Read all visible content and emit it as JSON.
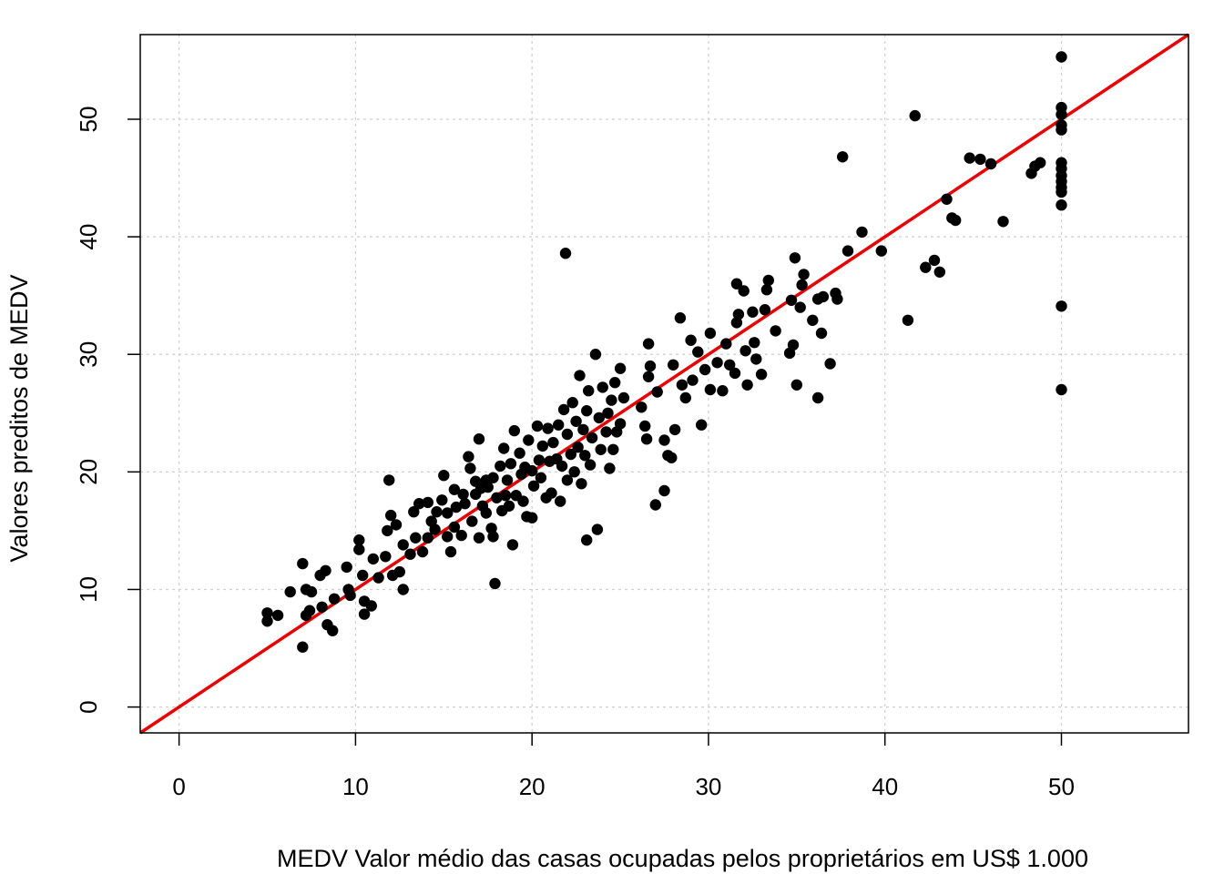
{
  "chart_data": {
    "type": "scatter",
    "title": "",
    "xlabel": "MEDV Valor médio das casas ocupadas pelos proprietários em US$ 1.000",
    "ylabel": "Valores preditos de MEDV",
    "xlim": [
      -2.2,
      57.2
    ],
    "ylim": [
      -2.2,
      57.2
    ],
    "x_ticks": [
      0,
      10,
      20,
      30,
      40,
      50
    ],
    "y_ticks": [
      0,
      10,
      20,
      30,
      40,
      50
    ],
    "x_tick_labels": [
      "0",
      "10",
      "20",
      "30",
      "40",
      "50"
    ],
    "y_tick_labels": [
      "0",
      "10",
      "20",
      "30",
      "40",
      "50"
    ],
    "grid": true,
    "point_color": "#000000",
    "reference_line": {
      "slope": 1,
      "intercept": 0,
      "color": "#ee0000"
    },
    "points": [
      [
        5.0,
        8.0
      ],
      [
        5.0,
        7.3
      ],
      [
        5.6,
        7.8
      ],
      [
        6.3,
        9.8
      ],
      [
        7.0,
        12.2
      ],
      [
        7.0,
        5.1
      ],
      [
        7.2,
        7.8
      ],
      [
        7.2,
        10.0
      ],
      [
        7.4,
        8.2
      ],
      [
        7.5,
        9.8
      ],
      [
        8.0,
        11.2
      ],
      [
        8.1,
        8.5
      ],
      [
        8.3,
        11.6
      ],
      [
        8.4,
        7.0
      ],
      [
        8.7,
        6.5
      ],
      [
        8.8,
        9.2
      ],
      [
        9.5,
        11.9
      ],
      [
        9.6,
        10.0
      ],
      [
        9.7,
        9.5
      ],
      [
        10.2,
        13.4
      ],
      [
        10.2,
        14.2
      ],
      [
        10.4,
        11.2
      ],
      [
        10.5,
        9.0
      ],
      [
        10.5,
        7.9
      ],
      [
        10.9,
        8.6
      ],
      [
        11.0,
        12.6
      ],
      [
        11.3,
        11.0
      ],
      [
        11.7,
        12.8
      ],
      [
        11.8,
        15.0
      ],
      [
        11.9,
        19.3
      ],
      [
        12.0,
        16.3
      ],
      [
        12.1,
        11.2
      ],
      [
        12.3,
        15.5
      ],
      [
        12.5,
        11.5
      ],
      [
        12.7,
        13.8
      ],
      [
        12.7,
        10.0
      ],
      [
        13.1,
        13.0
      ],
      [
        13.3,
        16.6
      ],
      [
        13.4,
        14.4
      ],
      [
        13.6,
        17.3
      ],
      [
        13.8,
        13.2
      ],
      [
        14.1,
        14.4
      ],
      [
        14.1,
        17.4
      ],
      [
        14.3,
        15.8
      ],
      [
        14.5,
        15.1
      ],
      [
        14.6,
        16.6
      ],
      [
        14.9,
        17.6
      ],
      [
        15.0,
        19.7
      ],
      [
        15.2,
        14.5
      ],
      [
        15.2,
        16.5
      ],
      [
        15.4,
        13.2
      ],
      [
        15.6,
        15.3
      ],
      [
        15.6,
        18.5
      ],
      [
        15.7,
        17.0
      ],
      [
        16.0,
        14.6
      ],
      [
        16.1,
        18.1
      ],
      [
        16.2,
        17.3
      ],
      [
        16.4,
        21.3
      ],
      [
        16.5,
        20.3
      ],
      [
        16.6,
        15.8
      ],
      [
        16.8,
        19.2
      ],
      [
        16.8,
        18.1
      ],
      [
        17.0,
        14.4
      ],
      [
        17.0,
        22.8
      ],
      [
        17.1,
        18.6
      ],
      [
        17.2,
        17.1
      ],
      [
        17.4,
        19.3
      ],
      [
        17.4,
        16.5
      ],
      [
        17.5,
        18.7
      ],
      [
        17.7,
        15.2
      ],
      [
        17.8,
        14.5
      ],
      [
        17.8,
        19.5
      ],
      [
        17.9,
        10.5
      ],
      [
        18.0,
        17.8
      ],
      [
        18.2,
        20.5
      ],
      [
        18.3,
        16.7
      ],
      [
        18.4,
        22.0
      ],
      [
        18.5,
        18.0
      ],
      [
        18.6,
        19.3
      ],
      [
        18.7,
        17.1
      ],
      [
        18.8,
        20.7
      ],
      [
        18.9,
        13.8
      ],
      [
        19.0,
        23.5
      ],
      [
        19.1,
        18.0
      ],
      [
        19.3,
        21.6
      ],
      [
        19.4,
        19.8
      ],
      [
        19.5,
        17.5
      ],
      [
        19.6,
        20.4
      ],
      [
        19.7,
        16.2
      ],
      [
        19.8,
        22.7
      ],
      [
        20.0,
        20.1
      ],
      [
        20.0,
        16.1
      ],
      [
        20.1,
        18.8
      ],
      [
        20.3,
        23.9
      ],
      [
        20.4,
        21.0
      ],
      [
        20.5,
        19.5
      ],
      [
        20.6,
        22.2
      ],
      [
        20.8,
        17.8
      ],
      [
        20.9,
        23.7
      ],
      [
        21.0,
        20.9
      ],
      [
        21.1,
        18.2
      ],
      [
        21.2,
        22.5
      ],
      [
        21.4,
        21.1
      ],
      [
        21.5,
        24.0
      ],
      [
        21.6,
        17.5
      ],
      [
        21.7,
        20.5
      ],
      [
        21.8,
        25.3
      ],
      [
        21.9,
        38.6
      ],
      [
        22.0,
        19.3
      ],
      [
        22.0,
        23.2
      ],
      [
        22.2,
        21.5
      ],
      [
        22.3,
        25.9
      ],
      [
        22.4,
        20.0
      ],
      [
        22.5,
        24.3
      ],
      [
        22.6,
        22.1
      ],
      [
        22.7,
        28.2
      ],
      [
        22.8,
        19.0
      ],
      [
        22.9,
        23.6
      ],
      [
        23.0,
        21.4
      ],
      [
        23.1,
        25.2
      ],
      [
        23.1,
        14.2
      ],
      [
        23.2,
        26.9
      ],
      [
        23.3,
        20.6
      ],
      [
        23.4,
        22.9
      ],
      [
        23.6,
        30.0
      ],
      [
        23.7,
        15.1
      ],
      [
        23.8,
        24.6
      ],
      [
        23.9,
        21.9
      ],
      [
        24.0,
        27.2
      ],
      [
        24.2,
        23.4
      ],
      [
        24.3,
        25.0
      ],
      [
        24.4,
        20.3
      ],
      [
        24.5,
        26.1
      ],
      [
        24.6,
        21.9
      ],
      [
        24.7,
        27.6
      ],
      [
        24.8,
        23.4
      ],
      [
        25.0,
        28.8
      ],
      [
        25.0,
        24.1
      ],
      [
        25.2,
        26.3
      ],
      [
        26.2,
        25.5
      ],
      [
        26.4,
        23.9
      ],
      [
        26.5,
        22.8
      ],
      [
        26.6,
        28.1
      ],
      [
        26.6,
        30.9
      ],
      [
        26.7,
        29.0
      ],
      [
        27.0,
        17.2
      ],
      [
        27.1,
        26.8
      ],
      [
        27.5,
        18.4
      ],
      [
        27.5,
        22.7
      ],
      [
        27.7,
        21.4
      ],
      [
        27.9,
        21.2
      ],
      [
        28.0,
        29.1
      ],
      [
        28.1,
        23.6
      ],
      [
        28.4,
        33.1
      ],
      [
        28.5,
        27.4
      ],
      [
        28.7,
        26.3
      ],
      [
        29.0,
        31.2
      ],
      [
        29.1,
        27.8
      ],
      [
        29.4,
        30.2
      ],
      [
        29.6,
        24.0
      ],
      [
        29.8,
        28.7
      ],
      [
        30.1,
        31.8
      ],
      [
        30.1,
        27.0
      ],
      [
        30.5,
        29.3
      ],
      [
        30.8,
        26.9
      ],
      [
        31.0,
        30.9
      ],
      [
        31.2,
        29.1
      ],
      [
        31.5,
        28.4
      ],
      [
        31.6,
        36.0
      ],
      [
        31.7,
        33.4
      ],
      [
        31.6,
        32.7
      ],
      [
        32.0,
        35.4
      ],
      [
        32.1,
        30.3
      ],
      [
        32.2,
        27.4
      ],
      [
        32.5,
        33.6
      ],
      [
        32.6,
        31.0
      ],
      [
        32.7,
        29.6
      ],
      [
        33.0,
        28.3
      ],
      [
        33.2,
        33.8
      ],
      [
        33.3,
        35.5
      ],
      [
        33.4,
        36.3
      ],
      [
        33.8,
        32.0
      ],
      [
        34.6,
        30.1
      ],
      [
        34.7,
        34.6
      ],
      [
        34.8,
        30.8
      ],
      [
        34.9,
        38.2
      ],
      [
        35.0,
        27.4
      ],
      [
        35.2,
        34.0
      ],
      [
        35.3,
        35.9
      ],
      [
        35.4,
        36.8
      ],
      [
        35.9,
        32.9
      ],
      [
        36.2,
        26.3
      ],
      [
        36.2,
        34.7
      ],
      [
        36.4,
        31.8
      ],
      [
        36.5,
        34.9
      ],
      [
        36.9,
        29.2
      ],
      [
        37.2,
        35.2
      ],
      [
        37.3,
        34.7
      ],
      [
        37.6,
        46.8
      ],
      [
        37.9,
        38.8
      ],
      [
        38.7,
        40.4
      ],
      [
        39.8,
        38.8
      ],
      [
        41.3,
        32.9
      ],
      [
        41.7,
        50.3
      ],
      [
        42.3,
        37.4
      ],
      [
        42.8,
        38.0
      ],
      [
        43.1,
        37.0
      ],
      [
        43.5,
        43.2
      ],
      [
        43.8,
        41.6
      ],
      [
        44.0,
        41.4
      ],
      [
        44.8,
        46.7
      ],
      [
        45.4,
        46.6
      ],
      [
        46.0,
        46.2
      ],
      [
        46.7,
        41.3
      ],
      [
        48.3,
        45.4
      ],
      [
        48.5,
        46.0
      ],
      [
        48.8,
        46.3
      ],
      [
        50.0,
        55.3
      ],
      [
        50.0,
        51.0
      ],
      [
        50.0,
        50.4
      ],
      [
        50.0,
        49.5
      ],
      [
        50.0,
        49.1
      ],
      [
        50.0,
        46.3
      ],
      [
        50.0,
        45.8
      ],
      [
        50.0,
        45.2
      ],
      [
        50.0,
        44.7
      ],
      [
        50.0,
        44.2
      ],
      [
        50.0,
        43.8
      ],
      [
        50.0,
        42.7
      ],
      [
        50.0,
        34.1
      ],
      [
        50.0,
        27.0
      ]
    ]
  }
}
